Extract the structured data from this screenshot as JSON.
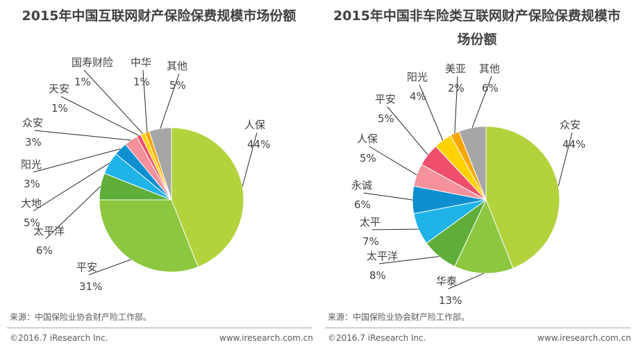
{
  "chart_data": [
    {
      "type": "pie",
      "title": "2015年中国互联网财产保险保费规模市场份额",
      "slices": [
        {
          "name": "人保",
          "value": 44,
          "label": "44%",
          "color": "#b3d33d"
        },
        {
          "name": "平安",
          "value": 31,
          "label": "31%",
          "color": "#8dc63f"
        },
        {
          "name": "太平洋",
          "value": 6,
          "label": "6%",
          "color": "#5fae3a"
        },
        {
          "name": "大地",
          "value": 5,
          "label": "5%",
          "color": "#1fb3e8"
        },
        {
          "name": "阳光",
          "value": 3,
          "label": "3%",
          "color": "#0e8fd0"
        },
        {
          "name": "众安",
          "value": 3,
          "label": "3%",
          "color": "#f4919a"
        },
        {
          "name": "天安",
          "value": 1,
          "label": "1%",
          "color": "#ef4f6a"
        },
        {
          "name": "国寿财险",
          "value": 1,
          "label": "1%",
          "color": "#ffd200"
        },
        {
          "name": "中华",
          "value": 1,
          "label": "1%",
          "color": "#f7a700"
        },
        {
          "name": "其他",
          "value": 5,
          "label": "5%",
          "color": "#a6a6a6"
        }
      ]
    },
    {
      "type": "pie",
      "title": "2015年中国非车险类互联网财产保险保费规模市场份额",
      "slices": [
        {
          "name": "众安",
          "value": 44,
          "label": "44%",
          "color": "#b3d33d"
        },
        {
          "name": "华泰",
          "value": 13,
          "label": "13%",
          "color": "#8dc63f"
        },
        {
          "name": "太平洋",
          "value": 8,
          "label": "8%",
          "color": "#5fae3a"
        },
        {
          "name": "太平",
          "value": 7,
          "label": "7%",
          "color": "#1fb3e8"
        },
        {
          "name": "永诚",
          "value": 6,
          "label": "6%",
          "color": "#0e8fd0"
        },
        {
          "name": "人保",
          "value": 5,
          "label": "5%",
          "color": "#f4919a"
        },
        {
          "name": "平安",
          "value": 5,
          "label": "5%",
          "color": "#ef4f6a"
        },
        {
          "name": "阳光",
          "value": 4,
          "label": "4%",
          "color": "#ffd200"
        },
        {
          "name": "美亚",
          "value": 2,
          "label": "2%",
          "color": "#f7a700"
        },
        {
          "name": "其他",
          "value": 6,
          "label": "6%",
          "color": "#a6a6a6"
        }
      ]
    }
  ],
  "source_left": "来源：中国保险业协会财产险工作部。",
  "source_right": "来源：中国保险业协会财产险工作部。",
  "copyright": "©2016.7 iResearch Inc.",
  "website": "www.iresearch.com.cn"
}
